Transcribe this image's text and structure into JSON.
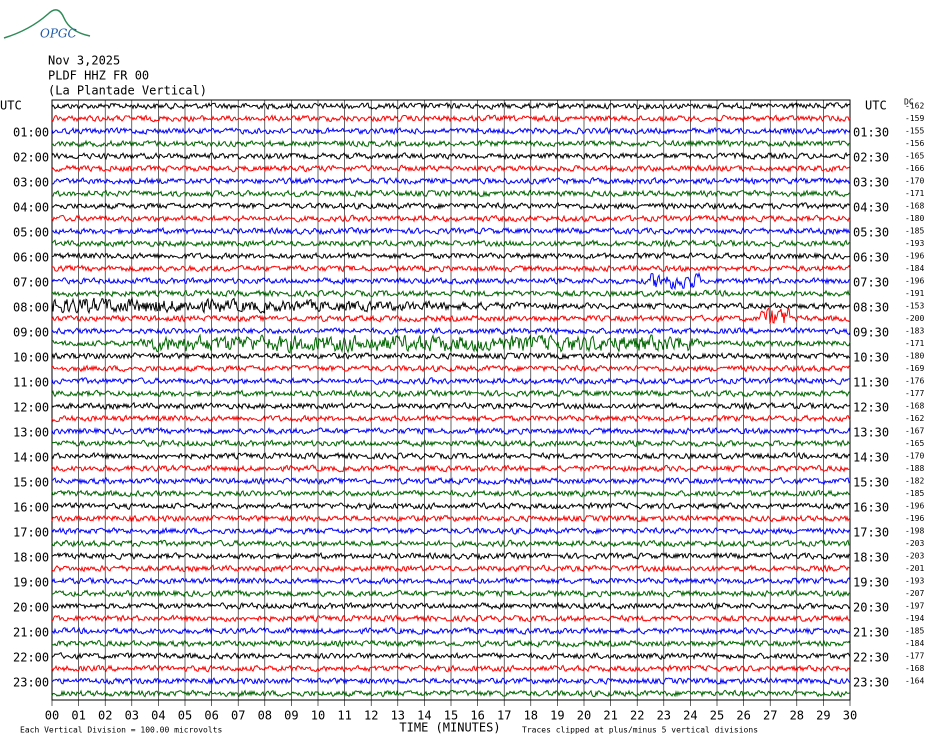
{
  "header": {
    "logo": "OPGC",
    "date": "Nov 3,2025",
    "station": "PLDF HHZ FR 00",
    "location": "(La Plantade Vertical)"
  },
  "chart_data": {
    "type": "helicorder",
    "left_axis_label": "UTC",
    "right_axis_label": "UTC",
    "dc_label": "DC",
    "xlabel": "TIME (MINUTES)",
    "xlim": [
      0,
      30
    ],
    "xticks": [
      {
        "value": 0,
        "label": "00"
      },
      {
        "value": 1,
        "label": "01"
      },
      {
        "value": 2,
        "label": "02"
      },
      {
        "value": 3,
        "label": "03"
      },
      {
        "value": 4,
        "label": "04"
      },
      {
        "value": 5,
        "label": "05"
      },
      {
        "value": 6,
        "label": "06"
      },
      {
        "value": 7,
        "label": "07"
      },
      {
        "value": 8,
        "label": "08"
      },
      {
        "value": 9,
        "label": "09"
      },
      10,
      11,
      12,
      13,
      14,
      15,
      16,
      17,
      18,
      19,
      20,
      21,
      22,
      23,
      24,
      25,
      26,
      27,
      28,
      29,
      30
    ],
    "left_labels": [
      "01:00",
      "02:00",
      "03:00",
      "04:00",
      "05:00",
      "06:00",
      "07:00",
      "08:00",
      "09:00",
      "10:00",
      "11:00",
      "12:00",
      "13:00",
      "14:00",
      "15:00",
      "16:00",
      "17:00",
      "18:00",
      "19:00",
      "20:00",
      "21:00",
      "22:00",
      "23:00"
    ],
    "right_labels": [
      "01:30",
      "02:30",
      "03:30",
      "04:30",
      "05:30",
      "06:30",
      "07:30",
      "08:30",
      "09:30",
      "10:30",
      "11:30",
      "12:30",
      "13:30",
      "14:30",
      "15:30",
      "16:30",
      "17:30",
      "18:30",
      "19:30",
      "20:30",
      "21:30",
      "22:30",
      "23:30"
    ],
    "dc_offsets": [
      -162,
      -159,
      -155,
      -156,
      -165,
      -166,
      -170,
      -171,
      -168,
      -180,
      -185,
      -193,
      -196,
      -184,
      -196,
      -191,
      -153,
      -200,
      -183,
      -171,
      -180,
      -169,
      -176,
      -177,
      -168,
      -162,
      -167,
      -165,
      -170,
      -188,
      -182,
      -185,
      -196,
      -196,
      -198,
      -203,
      -203,
      -201,
      -193,
      -207,
      -197,
      -194,
      -185,
      -184,
      -177,
      -168,
      -164
    ],
    "trace_colors": [
      "#000000",
      "#ff0000",
      "#0000ff",
      "#006400"
    ],
    "footer_left": "Each Vertical Division =  100.00 microvolts",
    "footer_right": "Traces clipped at plus/minus 5 vertical divisions"
  }
}
